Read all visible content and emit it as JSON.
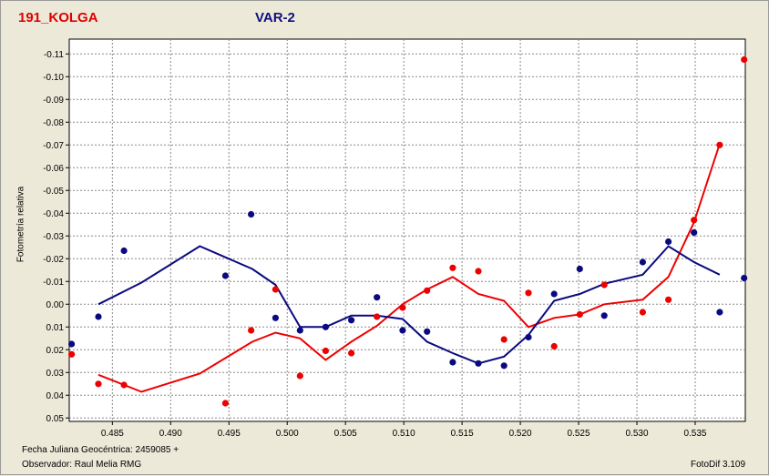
{
  "window": {
    "object_name": "191_KOLGA",
    "variable_name": "VAR-2",
    "footer_date": "Fecha Juliana Geocéntrica: 2459085 +",
    "footer_observer": "Observador: Raul Melia RMG",
    "footer_app": "FotoDif 3.109"
  },
  "colors": {
    "background": "#ece9d8",
    "plot_background": "#ffffff",
    "object_series": "#ee0000",
    "var_series": "#0a0a80",
    "grid": "#888888"
  },
  "chart_data": {
    "type": "scatter",
    "title": "",
    "xlabel": "",
    "ylabel": "Fotometría relativa",
    "xlim": [
      0.4813,
      0.5393
    ],
    "ylim": [
      0.0515,
      -0.1165
    ],
    "y_inverted": true,
    "grid": true,
    "x_ticks": [
      "0.485",
      "0.490",
      "0.495",
      "0.500",
      "0.505",
      "0.510",
      "0.515",
      "0.520",
      "0.525",
      "0.530",
      "0.535"
    ],
    "x_tick_values": [
      0.485,
      0.49,
      0.495,
      0.5,
      0.505,
      0.51,
      0.515,
      0.52,
      0.525,
      0.53,
      0.535
    ],
    "y_ticks": [
      "-0.11",
      "-0.10",
      "-0.09",
      "-0.08",
      "-0.07",
      "-0.06",
      "-0.05",
      "-0.04",
      "-0.03",
      "-0.02",
      "-0.01",
      "0.00",
      "0.01",
      "0.02",
      "0.03",
      "0.04",
      "0.05"
    ],
    "y_tick_values": [
      -0.11,
      -0.1,
      -0.09,
      -0.08,
      -0.07,
      -0.06,
      -0.05,
      -0.04,
      -0.03,
      -0.02,
      -0.01,
      0.0,
      0.01,
      0.02,
      0.03,
      0.04,
      0.05
    ],
    "series": [
      {
        "color": "#ee0000",
        "points": [
          [
            0.4815,
            0.022
          ],
          [
            0.4838,
            0.035
          ],
          [
            0.486,
            0.0355
          ],
          [
            0.4947,
            0.0435
          ],
          [
            0.4969,
            0.0115
          ],
          [
            0.499,
            -0.0065
          ],
          [
            0.5011,
            0.0315
          ],
          [
            0.5033,
            0.0205
          ],
          [
            0.5055,
            0.0215
          ],
          [
            0.5077,
            0.0055
          ],
          [
            0.5099,
            0.0015
          ],
          [
            0.512,
            -0.006
          ],
          [
            0.5142,
            -0.016
          ],
          [
            0.5164,
            -0.0145
          ],
          [
            0.5186,
            0.0155
          ],
          [
            0.5207,
            -0.005
          ],
          [
            0.5229,
            0.0185
          ],
          [
            0.5251,
            0.0045
          ],
          [
            0.5272,
            -0.0085
          ],
          [
            0.5305,
            0.0035
          ],
          [
            0.5327,
            -0.002
          ],
          [
            0.5349,
            -0.037
          ],
          [
            0.5371,
            -0.07
          ],
          [
            0.5392,
            -0.1075
          ]
        ],
        "trend": [
          [
            0.4838,
            0.031
          ],
          [
            0.4875,
            0.0385
          ],
          [
            0.4925,
            0.0305
          ],
          [
            0.497,
            0.0165
          ],
          [
            0.499,
            0.0125
          ],
          [
            0.5011,
            0.015
          ],
          [
            0.5033,
            0.0245
          ],
          [
            0.5055,
            0.0165
          ],
          [
            0.5077,
            0.0095
          ],
          [
            0.5099,
            0.0
          ],
          [
            0.512,
            -0.0065
          ],
          [
            0.5142,
            -0.012
          ],
          [
            0.5164,
            -0.0045
          ],
          [
            0.5186,
            -0.0015
          ],
          [
            0.5207,
            0.01
          ],
          [
            0.5229,
            0.006
          ],
          [
            0.5251,
            0.0045
          ],
          [
            0.5272,
            0.0
          ],
          [
            0.5305,
            -0.002
          ],
          [
            0.5327,
            -0.012
          ],
          [
            0.5349,
            -0.036
          ],
          [
            0.5371,
            -0.0705
          ]
        ]
      },
      {
        "color": "#0a0a80",
        "points": [
          [
            0.4815,
            0.0175
          ],
          [
            0.4838,
            0.0055
          ],
          [
            0.486,
            -0.0235
          ],
          [
            0.4947,
            -0.0125
          ],
          [
            0.4969,
            -0.0395
          ],
          [
            0.499,
            0.006
          ],
          [
            0.5011,
            0.0115
          ],
          [
            0.5033,
            0.01
          ],
          [
            0.5055,
            0.007
          ],
          [
            0.5077,
            -0.003
          ],
          [
            0.5099,
            0.0115
          ],
          [
            0.512,
            0.012
          ],
          [
            0.5142,
            0.0255
          ],
          [
            0.5164,
            0.026
          ],
          [
            0.5186,
            0.027
          ],
          [
            0.5207,
            0.0145
          ],
          [
            0.5229,
            -0.0045
          ],
          [
            0.5251,
            -0.0155
          ],
          [
            0.5272,
            0.005
          ],
          [
            0.5305,
            -0.0185
          ],
          [
            0.5327,
            -0.0275
          ],
          [
            0.5349,
            -0.0315
          ],
          [
            0.5371,
            0.0035
          ],
          [
            0.5392,
            -0.0115
          ]
        ],
        "trend": [
          [
            0.4838,
            0.0
          ],
          [
            0.4875,
            -0.0095
          ],
          [
            0.4925,
            -0.0255
          ],
          [
            0.497,
            -0.0155
          ],
          [
            0.499,
            -0.0085
          ],
          [
            0.5011,
            0.01
          ],
          [
            0.5033,
            0.01
          ],
          [
            0.5055,
            0.005
          ],
          [
            0.5077,
            0.005
          ],
          [
            0.5099,
            0.0065
          ],
          [
            0.512,
            0.0165
          ],
          [
            0.5142,
            0.0215
          ],
          [
            0.5164,
            0.026
          ],
          [
            0.5186,
            0.023
          ],
          [
            0.5207,
            0.0135
          ],
          [
            0.5229,
            -0.0015
          ],
          [
            0.5251,
            -0.0045
          ],
          [
            0.5272,
            -0.009
          ],
          [
            0.5305,
            -0.013
          ],
          [
            0.5327,
            -0.0255
          ],
          [
            0.5349,
            -0.0185
          ],
          [
            0.5371,
            -0.013
          ]
        ]
      }
    ]
  }
}
